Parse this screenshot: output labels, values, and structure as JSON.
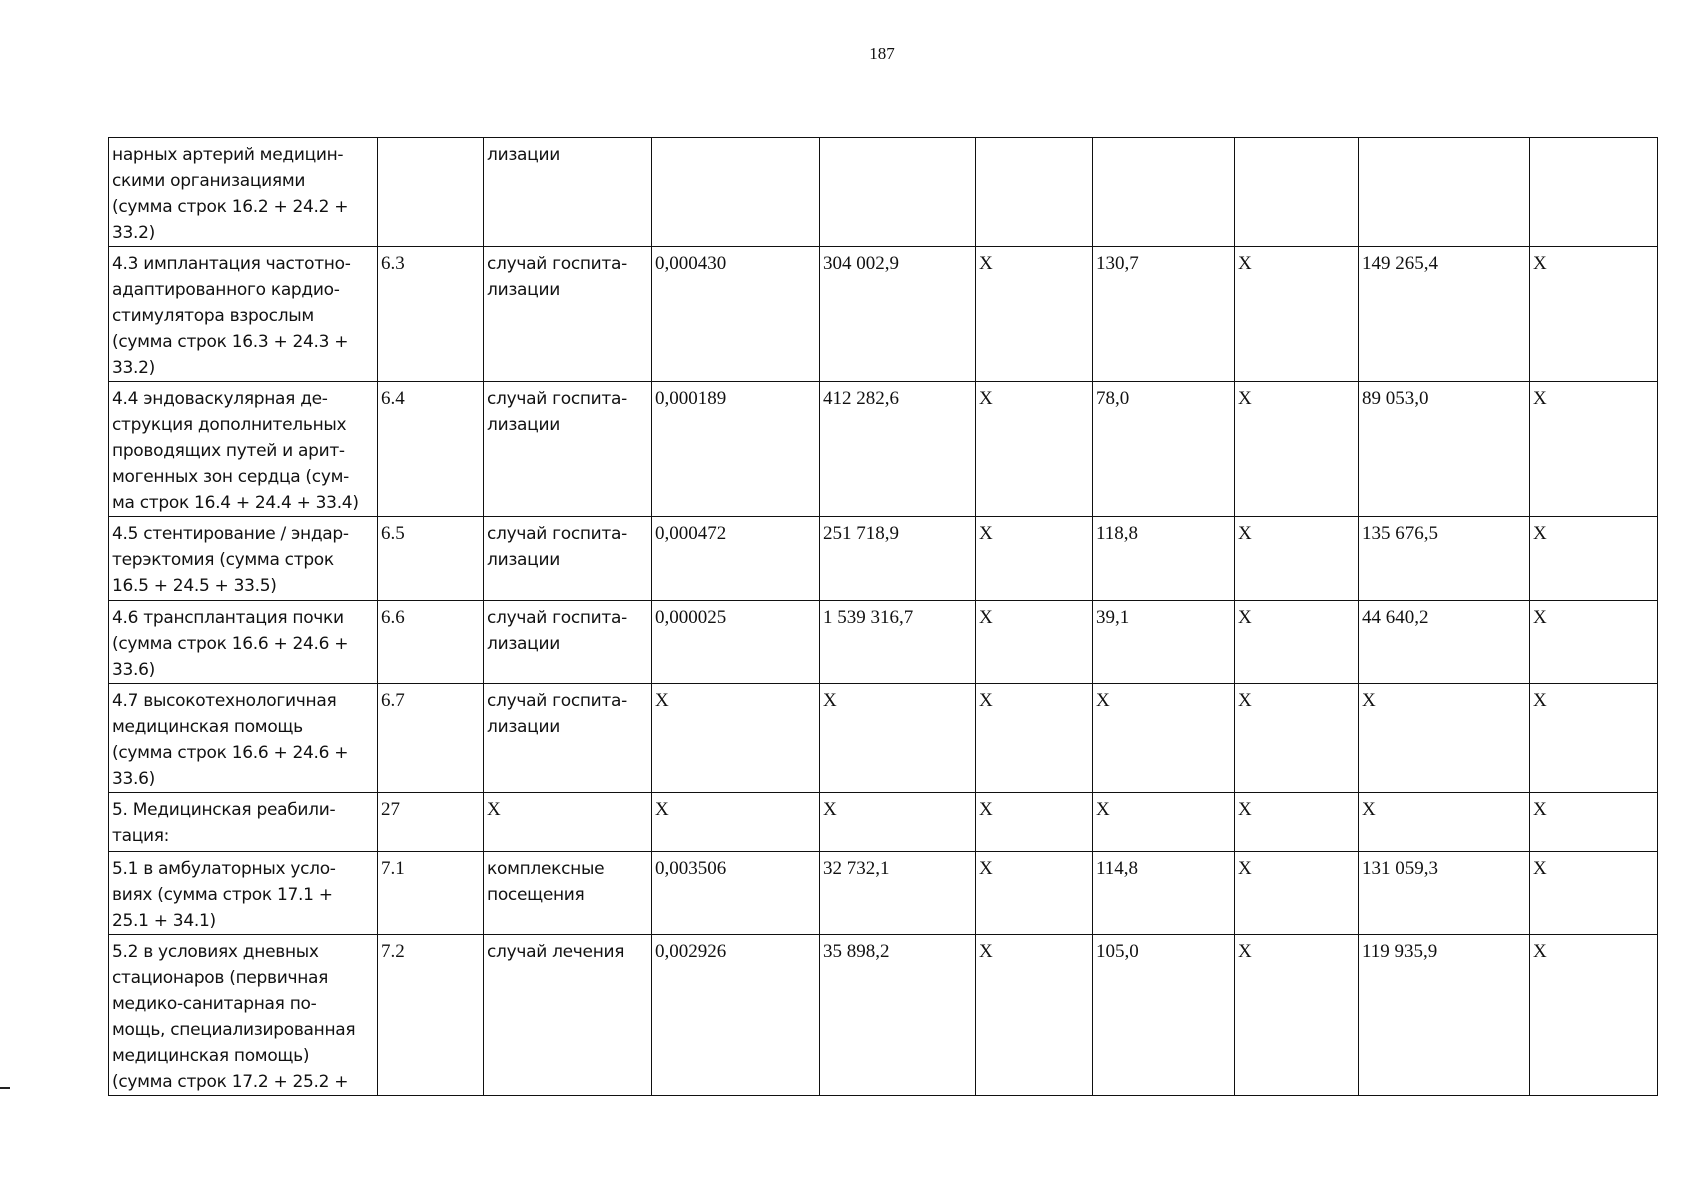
{
  "page_number": "187",
  "rows": [
    {
      "name": "нарных артерий медицин-\nскими организациями\n(сумма строк 16.2 + 24.2 +\n33.2)",
      "line": "",
      "unit": "лизации",
      "cells": [
        "",
        "",
        "",
        "",
        "",
        "",
        "",
        ""
      ]
    },
    {
      "name": "4.3 имплантация частотно-\nадаптированного кардио-\nстимулятора взрослым\n(сумма строк 16.3 + 24.3 +\n33.2)",
      "line": "6.3",
      "unit": "случай госпита-\nлизации",
      "cells": [
        "0,000430",
        "304 002,9",
        "X",
        "130,7",
        "X",
        "149 265,4",
        "X"
      ]
    },
    {
      "name": "4.4 эндоваскулярная де-\nструкция дополнительных\nпроводящих путей и арит-\nмогенных зон сердца (сум-\nма строк 16.4 + 24.4 + 33.4)",
      "line": "6.4",
      "unit": "случай госпита-\nлизации",
      "cells": [
        "0,000189",
        "412 282,6",
        "X",
        "78,0",
        "X",
        "89 053,0",
        "X"
      ]
    },
    {
      "name": "4.5 стентирование / эндар-\nтерэктомия (сумма строк\n16.5 + 24.5 + 33.5)",
      "line": "6.5",
      "unit": "случай госпита-\nлизации",
      "cells": [
        "0,000472",
        "251 718,9",
        "X",
        "118,8",
        "X",
        "135 676,5",
        "X"
      ]
    },
    {
      "name": "4.6 трансплантация почки\n(сумма строк 16.6 + 24.6 +\n33.6)",
      "line": "6.6",
      "unit": "случай госпита-\nлизации",
      "cells": [
        "0,000025",
        "1 539 316,7",
        "X",
        "39,1",
        "X",
        "44 640,2",
        "X"
      ]
    },
    {
      "name": "4.7 высокотехнологичная\nмедицинская помощь\n(сумма строк 16.6 + 24.6 +\n33.6)",
      "line": "6.7",
      "unit": "случай госпита-\nлизации",
      "cells": [
        "X",
        "X",
        "X",
        "X",
        "X",
        "X",
        "X"
      ]
    },
    {
      "name": "5. Медицинская реабили-\nтация:",
      "line": "27",
      "unit": "X",
      "cells": [
        "X",
        "X",
        "X",
        "X",
        "X",
        "X",
        "X"
      ]
    },
    {
      "name": "5.1 в амбулаторных усло-\nвиях (сумма строк 17.1 +\n25.1 + 34.1)",
      "line": "7.1",
      "unit": "комплексные\nпосещения",
      "cells": [
        "0,003506",
        "32 732,1",
        "X",
        "114,8",
        "X",
        "131 059,3",
        "X"
      ]
    },
    {
      "name": "5.2 в условиях дневных\nстационаров (первичная\nмедико-санитарная по-\nмощь, специализированная\nмедицинская помощь)\n(сумма строк 17.2 + 25.2 +",
      "line": "7.2",
      "unit": "случай лечения",
      "cells": [
        "0,002926",
        "35 898,2",
        "X",
        "105,0",
        "X",
        "119 935,9",
        "X"
      ]
    }
  ]
}
